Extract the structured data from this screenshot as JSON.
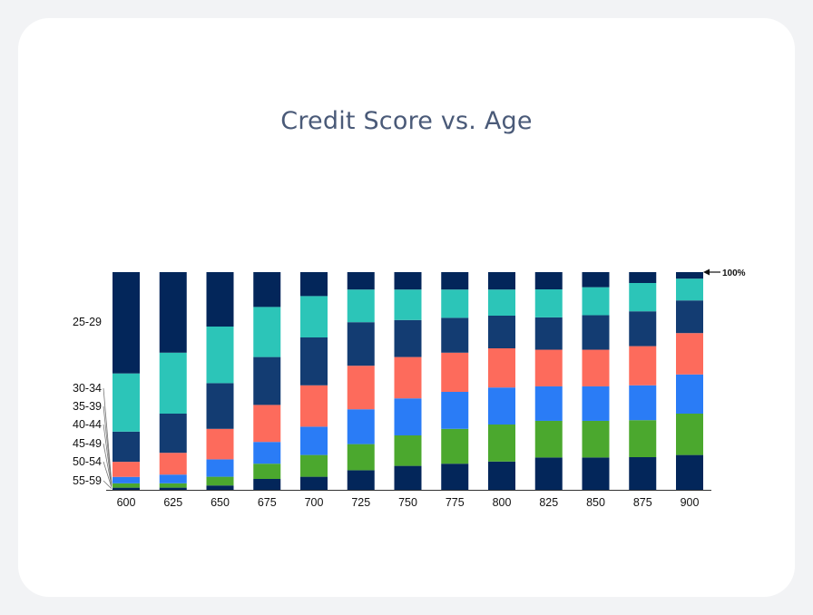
{
  "chart_data": {
    "type": "bar",
    "stacked": true,
    "normalized": true,
    "title": "Credit Score vs. Age",
    "categories": [
      "600",
      "625",
      "650",
      "675",
      "700",
      "725",
      "750",
      "775",
      "800",
      "825",
      "850",
      "875",
      "900"
    ],
    "top_annotation": "100%",
    "y_tick_labels": [
      "25-29",
      "30-34",
      "35-39",
      "40-44",
      "45-49",
      "50-54",
      "55-59"
    ],
    "colors": [
      "#03265a",
      "#4ba82e",
      "#2a7cf6",
      "#fd6b5c",
      "#133c72",
      "#2cc5b8",
      "#03265a"
    ],
    "series": [
      {
        "values": [
          1,
          1,
          2,
          5,
          6,
          9,
          11,
          12,
          13,
          15,
          15,
          15,
          16
        ]
      },
      {
        "values": [
          2,
          2,
          4,
          7,
          10,
          12,
          14,
          16,
          17,
          17,
          17,
          17,
          19
        ]
      },
      {
        "values": [
          3,
          4,
          8,
          10,
          13,
          16,
          17,
          17,
          17,
          16,
          16,
          16,
          18
        ]
      },
      {
        "values": [
          7,
          10,
          14,
          17,
          19,
          20,
          19,
          18,
          18,
          17,
          17,
          18,
          19
        ]
      },
      {
        "values": [
          14,
          18,
          21,
          22,
          22,
          20,
          17,
          16,
          15,
          15,
          16,
          16,
          15
        ]
      },
      {
        "values": [
          27,
          28,
          26,
          23,
          19,
          15,
          14,
          13,
          12,
          13,
          13,
          13,
          10
        ]
      },
      {
        "values": [
          47,
          37,
          25,
          16,
          11,
          8,
          8,
          8,
          8,
          8,
          7,
          5,
          3
        ]
      }
    ]
  }
}
